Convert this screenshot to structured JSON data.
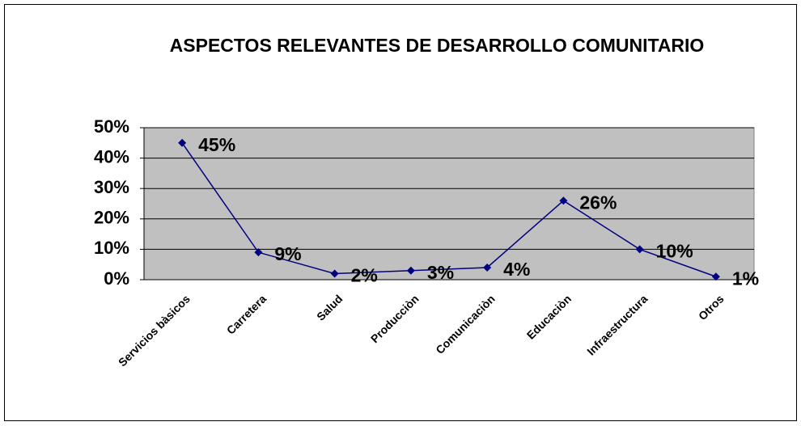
{
  "chart_data": {
    "type": "line",
    "title": "ASPECTOS RELEVANTES DE DESARROLLO COMUNITARIO",
    "categories": [
      "Servicios bàsicos",
      "Carretera",
      "Salud",
      "Producciòn",
      "Comunicaciòn",
      "Educaciòn",
      "Infraestructura",
      "Otros"
    ],
    "series": [
      {
        "color": "#000080",
        "values": [
          45,
          9,
          2,
          3,
          4,
          26,
          10,
          1
        ],
        "value_labels": [
          "45%",
          "9%",
          "2%",
          "3%",
          "4%",
          "26%",
          "10%",
          "1%"
        ]
      }
    ],
    "ylim": [
      0,
      50
    ],
    "yticks": [
      {
        "value": 0,
        "label": "0%"
      },
      {
        "value": 10,
        "label": "10%"
      },
      {
        "value": 20,
        "label": "20%"
      },
      {
        "value": 30,
        "label": "30%"
      },
      {
        "value": 40,
        "label": "40%"
      },
      {
        "value": 50,
        "label": "50%"
      }
    ],
    "grid": true,
    "plot_background": "#c0c0c0"
  }
}
